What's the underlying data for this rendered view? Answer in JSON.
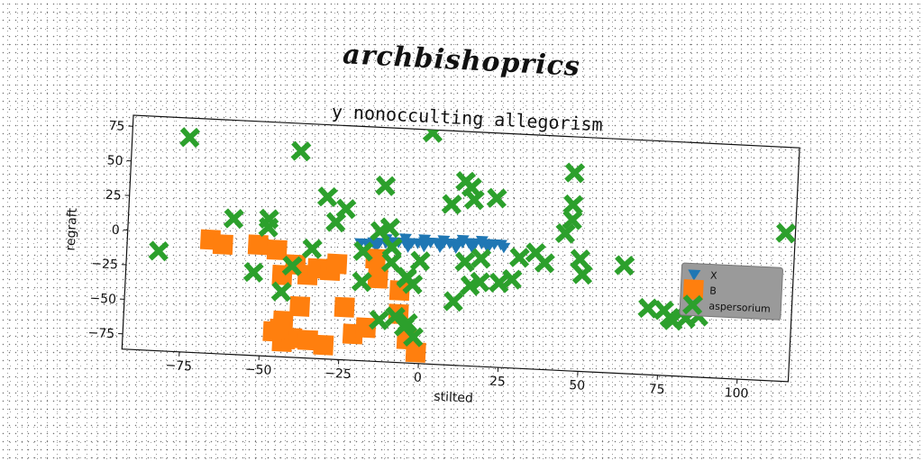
{
  "header": {
    "title": "archbishoprics"
  },
  "chart_data": {
    "type": "scatter",
    "title": "y nonocculting allegorism",
    "xlabel": "stilted",
    "ylabel": "regraft",
    "xlim": [
      -93,
      116
    ],
    "ylim": [
      -86,
      83
    ],
    "xticks": [
      -75,
      -50,
      -25,
      0,
      25,
      50,
      75,
      100
    ],
    "yticks": [
      75,
      50,
      25,
      0,
      -25,
      -50,
      -75
    ],
    "grid": false,
    "legend_position": "right",
    "series": [
      {
        "name": "X",
        "marker": "triangle-down",
        "color": "#1f77b4",
        "points": [
          [
            -20,
            -1
          ],
          [
            -18,
            -1
          ],
          [
            -16,
            0
          ],
          [
            -14,
            0
          ],
          [
            -12,
            0
          ],
          [
            -10,
            1
          ],
          [
            -8,
            1
          ],
          [
            -6,
            1
          ],
          [
            -4,
            1
          ],
          [
            -2,
            1
          ],
          [
            0,
            2
          ],
          [
            2,
            2
          ],
          [
            4,
            2
          ],
          [
            6,
            2
          ],
          [
            8,
            2
          ],
          [
            10,
            2
          ],
          [
            12,
            3
          ],
          [
            14,
            3
          ],
          [
            16,
            3
          ],
          [
            18,
            3
          ],
          [
            20,
            3
          ],
          [
            22,
            3
          ],
          [
            24,
            3
          ],
          [
            -15,
            -3
          ],
          [
            -10,
            -2
          ],
          [
            -5,
            -2
          ],
          [
            0,
            -1
          ],
          [
            5,
            -1
          ],
          [
            10,
            -1
          ],
          [
            15,
            0
          ],
          [
            20,
            0
          ],
          [
            25,
            1
          ],
          [
            -12,
            3
          ],
          [
            -6,
            4
          ],
          [
            0,
            4
          ],
          [
            6,
            4
          ],
          [
            12,
            5
          ],
          [
            18,
            5
          ]
        ]
      },
      {
        "name": "B",
        "marker": "square",
        "color": "#ff7f0e",
        "points": [
          [
            -67,
            -4
          ],
          [
            -63,
            -7
          ],
          [
            -52,
            -6
          ],
          [
            -46,
            -9
          ],
          [
            -40,
            -19
          ],
          [
            -36,
            -26
          ],
          [
            -33,
            -21
          ],
          [
            -29,
            -22
          ],
          [
            -27,
            -17
          ],
          [
            -15,
            -12
          ],
          [
            -14,
            -26
          ],
          [
            -7,
            -34
          ],
          [
            -7,
            -51
          ],
          [
            -44,
            -27
          ],
          [
            -38,
            -49
          ],
          [
            -24,
            -48
          ],
          [
            -43,
            -60
          ],
          [
            -42,
            -73
          ],
          [
            -46,
            -68
          ],
          [
            -43,
            -75
          ],
          [
            -40,
            -72
          ],
          [
            -35,
            -73
          ],
          [
            -30,
            -76
          ],
          [
            -21,
            -67
          ],
          [
            -17,
            -62
          ],
          [
            -4,
            -69
          ],
          [
            -1,
            -78
          ],
          [
            -44,
            -66
          ]
        ]
      },
      {
        "name": "aspersorium",
        "marker": "x",
        "color": "#2ca02c",
        "points": [
          [
            -83,
            -14
          ],
          [
            -75,
            69
          ],
          [
            -60,
            12
          ],
          [
            -49,
            13
          ],
          [
            -49,
            7
          ],
          [
            -40,
            63
          ],
          [
            -31,
            31
          ],
          [
            -28,
            13
          ],
          [
            -25,
            23
          ],
          [
            -53,
            -26
          ],
          [
            -44,
            -39
          ],
          [
            -41,
            -20
          ],
          [
            -13,
            41
          ],
          [
            -14,
            8
          ],
          [
            -11,
            11
          ],
          [
            -19,
            -7
          ],
          [
            -10,
            -3
          ],
          [
            -10,
            -14
          ],
          [
            -19,
            -29
          ],
          [
            -1,
            -12
          ],
          [
            -5,
            -24
          ],
          [
            -3,
            -29
          ],
          [
            -13,
            -56
          ],
          [
            -8,
            -53
          ],
          [
            -5,
            -60
          ],
          [
            -4,
            -57
          ],
          [
            -2,
            -67
          ],
          [
            1,
            81
          ],
          [
            8,
            30
          ],
          [
            12,
            47
          ],
          [
            14,
            43
          ],
          [
            15,
            34
          ],
          [
            22,
            36
          ],
          [
            13,
            -11
          ],
          [
            15,
            -28
          ],
          [
            18,
            -25
          ],
          [
            18,
            -8
          ],
          [
            24,
            -25
          ],
          [
            28,
            -22
          ],
          [
            30,
            -6
          ],
          [
            35,
            -2
          ],
          [
            38,
            -9
          ],
          [
            44,
            13
          ],
          [
            46,
            34
          ],
          [
            46,
            23
          ],
          [
            46,
            57
          ],
          [
            49,
            -5
          ],
          [
            50,
            -16
          ],
          [
            63,
            -8
          ],
          [
            71,
            -38
          ],
          [
            76,
            -39
          ],
          [
            78,
            -44
          ],
          [
            79,
            -46
          ],
          [
            83,
            -44
          ],
          [
            87,
            -42
          ],
          [
            113,
            21
          ],
          [
            -5,
            -25
          ],
          [
            -35,
            -7
          ],
          [
            10,
            -40
          ]
        ]
      }
    ]
  }
}
